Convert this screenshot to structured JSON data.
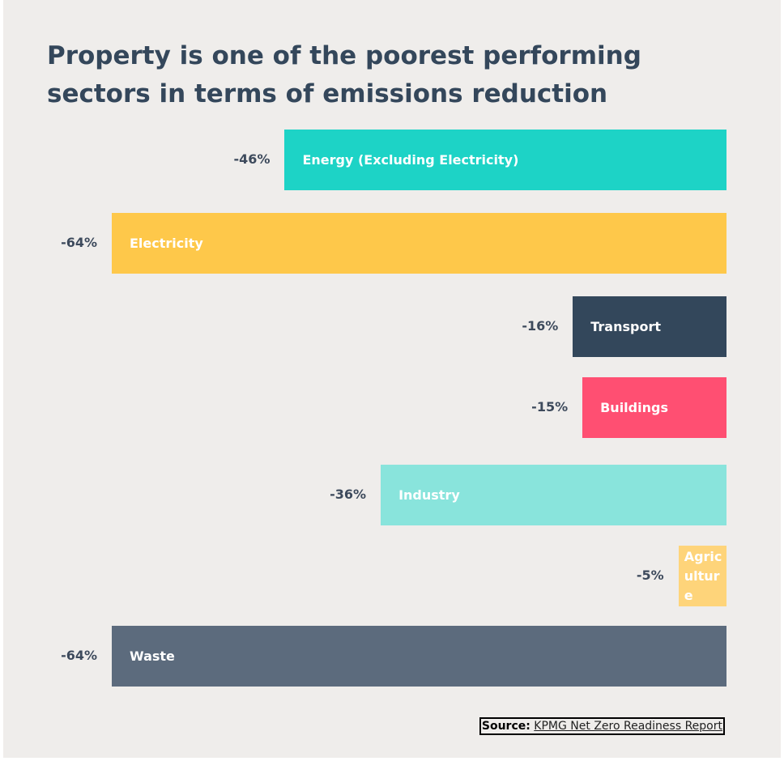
{
  "chart_data": {
    "type": "bar",
    "orientation": "horizontal",
    "title": "Property is one of the poorest performing sectors in terms of emissions reduction",
    "categories": [
      "Energy (Excluding Electricity)",
      "Electricity",
      "Transport",
      "Buildings",
      "Industry",
      "Agriculture",
      "Waste"
    ],
    "values": [
      -46,
      -64,
      -16,
      -15,
      -36,
      -5,
      -64
    ],
    "value_labels": [
      "-46%",
      "-64%",
      "-16%",
      "-15%",
      "-36%",
      "-5%",
      "-64%"
    ],
    "colors": [
      "#1dd3c6",
      "#fec84a",
      "#33475b",
      "#ff4f72",
      "#89e4dc",
      "#fed47a",
      "#5c6b7d"
    ],
    "xlim": [
      -64,
      0
    ],
    "source": {
      "label": "Source:",
      "text": "KPMG Net Zero Readiness Report"
    }
  }
}
